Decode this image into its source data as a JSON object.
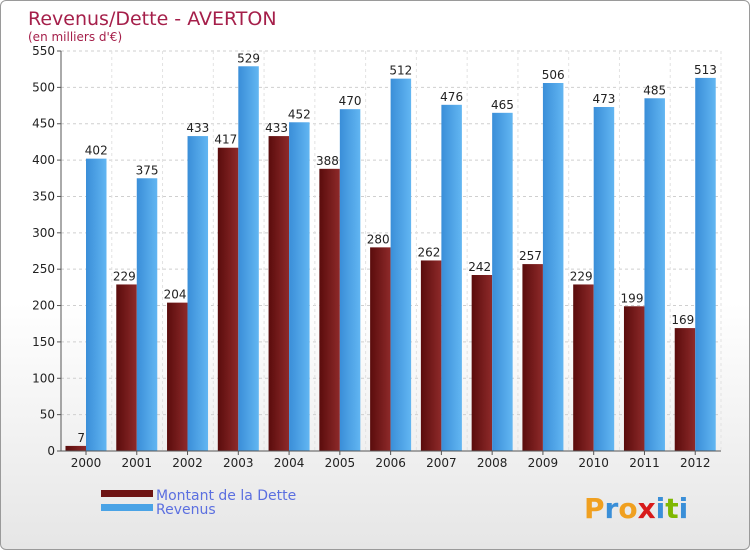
{
  "chart_data": {
    "type": "bar",
    "title": "Revenus/Dette - AVERTON",
    "subtitle": "(en milliers d'€)",
    "categories": [
      "2000",
      "2001",
      "2002",
      "2003",
      "2004",
      "2005",
      "2006",
      "2007",
      "2008",
      "2009",
      "2010",
      "2011",
      "2012"
    ],
    "series": [
      {
        "name": "Montant de la Dette",
        "color": "#7a1a1a",
        "values": [
          7,
          229,
          204,
          417,
          433,
          388,
          280,
          262,
          242,
          257,
          229,
          199,
          169
        ]
      },
      {
        "name": "Revenus",
        "color": "#4aa3e6",
        "values": [
          402,
          375,
          433,
          529,
          452,
          470,
          512,
          476,
          465,
          506,
          473,
          485,
          513
        ]
      }
    ],
    "yticks": [
      0,
      50,
      100,
      150,
      200,
      250,
      300,
      350,
      400,
      450,
      500,
      550
    ],
    "ylim": [
      0,
      550
    ],
    "grid": true,
    "legend": "bottom-left"
  },
  "brand": {
    "logo_letters": [
      "P",
      "r",
      "o",
      "x",
      "i",
      "t",
      "i"
    ],
    "logo_colors": [
      "#f0a020",
      "#3a8fd8",
      "#f0a020",
      "#d81a1a",
      "#3a8fd8",
      "#7fb800",
      "#3a8fd8"
    ]
  }
}
